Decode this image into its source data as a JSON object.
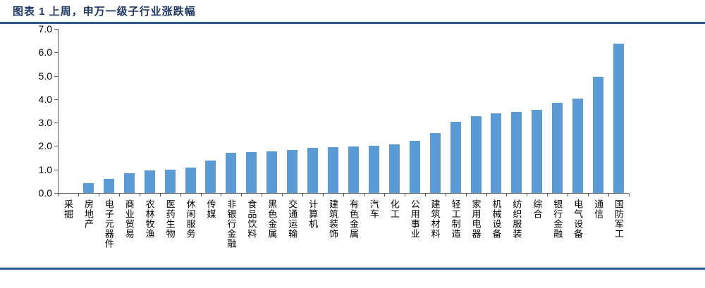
{
  "title": "图表 1 上周，申万一级子行业涨跌幅",
  "colors": {
    "title_text": "#1F3864",
    "divider_blue": "#2B5797",
    "bar_blue": "#5B9BD5",
    "axis_gray": "#595959",
    "label_black": "#000000"
  },
  "chart_data": {
    "type": "bar",
    "title": "上周，申万一级子行业涨跌幅",
    "categories": [
      "采掘",
      "房地产",
      "电子元器件",
      "商业贸易",
      "农林牧渔",
      "医药生物",
      "休闲服务",
      "传媒",
      "非银行金融",
      "食品饮料",
      "黑色金属",
      "交通运输",
      "计算机",
      "建筑装饰",
      "有色金属",
      "汽车",
      "化工",
      "公用事业",
      "建筑材料",
      "轻工制造",
      "家用电器",
      "机械设备",
      "纺织服装",
      "综合",
      "银行金融",
      "电气设备",
      "通信",
      "国防军工"
    ],
    "values": [
      0.0,
      0.41,
      0.6,
      0.85,
      0.95,
      1.0,
      1.09,
      1.37,
      1.72,
      1.74,
      1.77,
      1.84,
      1.91,
      1.95,
      1.98,
      2.02,
      2.06,
      2.21,
      2.54,
      3.04,
      3.28,
      3.39,
      3.46,
      3.55,
      3.86,
      4.04,
      4.95,
      6.36
    ],
    "xlabel": "",
    "ylabel": "",
    "ylim": [
      0,
      7
    ],
    "y_ticks": [
      "0.0",
      "1.0",
      "2.0",
      "3.0",
      "4.0",
      "5.0",
      "6.0",
      "7.0"
    ],
    "grid": false,
    "legend": false
  }
}
